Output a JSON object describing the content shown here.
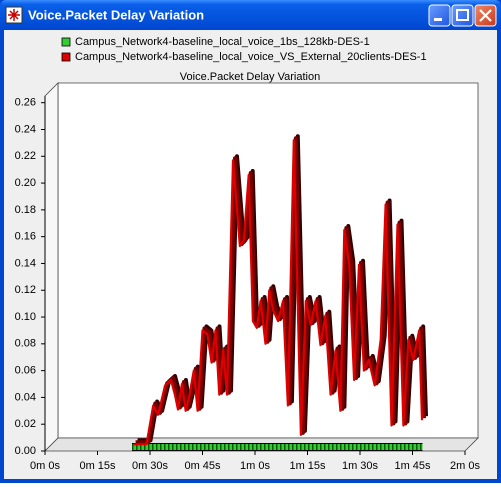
{
  "window": {
    "title": "Voice.Packet Delay Variation"
  },
  "chart_data": {
    "type": "line",
    "title": "Voice.Packet Delay Variation",
    "series": [
      {
        "name": "Campus_Network4-baseline_local_voice_1bs_128kb-DES-1",
        "color": "#33cc33",
        "x": [
          24,
          107
        ],
        "values": [
          0,
          0
        ]
      },
      {
        "name": "Campus_Network4-baseline_local_voice_VS_External_20clients-DES-1",
        "color": "#dd0000",
        "x": [
          25.3,
          29.0,
          30.9,
          32.3,
          34.3,
          36.0,
          37.1,
          38.0,
          39.1,
          40.2,
          41.3,
          42.5,
          43.6,
          45.0,
          46.4,
          47.6,
          48.7,
          49.8,
          50.9,
          52.0,
          53.7,
          55.7,
          56.8,
          58.2,
          59.4,
          60.5,
          61.6,
          63.0,
          64.1,
          65.2,
          66.6,
          68.0,
          69.4,
          71.1,
          73.1,
          74.5,
          75.9,
          77.3,
          78.7,
          80.1,
          81.6,
          83.0,
          84.4,
          85.5,
          86.9,
          88.3,
          89.7,
          91.1,
          92.5,
          94.2,
          95.9,
          97.3,
          99.0,
          100.7,
          102.4,
          103.8,
          105.2,
          106.9,
          107.7
        ],
        "values": [
          0.005,
          0.005,
          0.034,
          0.027,
          0.049,
          0.053,
          0.042,
          0.031,
          0.05,
          0.03,
          0.042,
          0.06,
          0.03,
          0.09,
          0.087,
          0.066,
          0.09,
          0.042,
          0.075,
          0.042,
          0.217,
          0.153,
          0.157,
          0.206,
          0.097,
          0.092,
          0.112,
          0.08,
          0.12,
          0.105,
          0.097,
          0.112,
          0.034,
          0.232,
          0.012,
          0.112,
          0.094,
          0.112,
          0.079,
          0.101,
          0.042,
          0.075,
          0.03,
          0.165,
          0.139,
          0.053,
          0.139,
          0.06,
          0.068,
          0.049,
          0.083,
          0.184,
          0.019,
          0.169,
          0.019,
          0.083,
          0.068,
          0.09,
          0.023
        ]
      }
    ],
    "xlim": [
      0,
      120
    ],
    "xticks": [
      {
        "value": 0,
        "label": "0m 0s"
      },
      {
        "value": 15,
        "label": "0m 15s"
      },
      {
        "value": 30,
        "label": "0m 30s"
      },
      {
        "value": 45,
        "label": "0m 45s"
      },
      {
        "value": 60,
        "label": "1m 0s"
      },
      {
        "value": 75,
        "label": "1m 15s"
      },
      {
        "value": 90,
        "label": "1m 30s"
      },
      {
        "value": 105,
        "label": "1m 45s"
      },
      {
        "value": 120,
        "label": "2m 0s"
      }
    ],
    "ylim": [
      0,
      0.265
    ],
    "yticks": [
      {
        "value": 0,
        "label": "0.00"
      },
      0.02,
      0.04,
      0.06,
      0.08,
      {
        "value": 0.1,
        "label": "0.10"
      },
      0.12,
      0.14,
      0.16,
      0.18,
      {
        "value": 0.2,
        "label": "0.20"
      },
      0.22,
      0.24,
      0.26
    ]
  }
}
